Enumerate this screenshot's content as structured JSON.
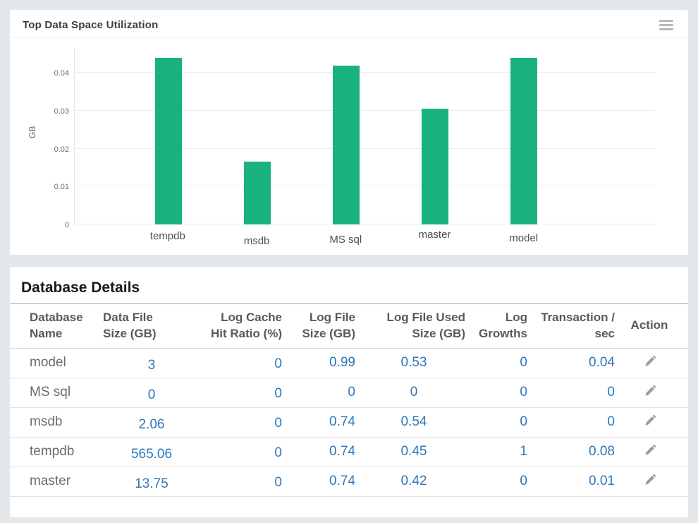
{
  "colors": {
    "bar_green": "#1ab181",
    "link_blue": "#2e77b8",
    "page_bg": "#e4e8eb"
  },
  "chart_panel": {
    "title": "Top Data Space Utilization",
    "menu_icon": "hamburger-icon"
  },
  "chart_data": {
    "type": "bar",
    "categories": [
      "tempdb",
      "msdb",
      "MS sql",
      "master",
      "model"
    ],
    "values": [
      0.044,
      0.0165,
      0.042,
      0.0305,
      0.044
    ],
    "title": "Top Data Space Utilization",
    "xlabel": "",
    "ylabel": "GB",
    "ylim": [
      0,
      0.0466
    ],
    "yticks": [
      0,
      0.01,
      0.02,
      0.03,
      0.04
    ],
    "ytick_labels": [
      "0",
      "0.01",
      "0.02",
      "0.03",
      "0.04"
    ],
    "grid": true,
    "legend": false,
    "bar_color": "#1ab181"
  },
  "table_panel": {
    "title": "Database Details",
    "columns": [
      "Database Name",
      "Data File Size (GB)",
      "Log Cache Hit Ratio (%)",
      "Log File Size (GB)",
      "Log File Used Size (GB)",
      "Log Growths",
      "Transaction / sec",
      "Action"
    ],
    "action_icon": "edit-pencil-icon",
    "rows": [
      {
        "name": "model",
        "cells": [
          "3",
          "0",
          "0.99",
          "0.53",
          "0",
          "0.04"
        ]
      },
      {
        "name": "MS sql",
        "cells": [
          "0",
          "0",
          "0",
          "0",
          "0",
          "0"
        ]
      },
      {
        "name": "msdb",
        "cells": [
          "2.06",
          "0",
          "0.74",
          "0.54",
          "0",
          "0"
        ]
      },
      {
        "name": "tempdb",
        "cells": [
          "565.06",
          "0",
          "0.74",
          "0.45",
          "1",
          "0.08"
        ]
      },
      {
        "name": "master",
        "cells": [
          "13.75",
          "0",
          "0.74",
          "0.42",
          "0",
          "0.01"
        ]
      }
    ]
  }
}
